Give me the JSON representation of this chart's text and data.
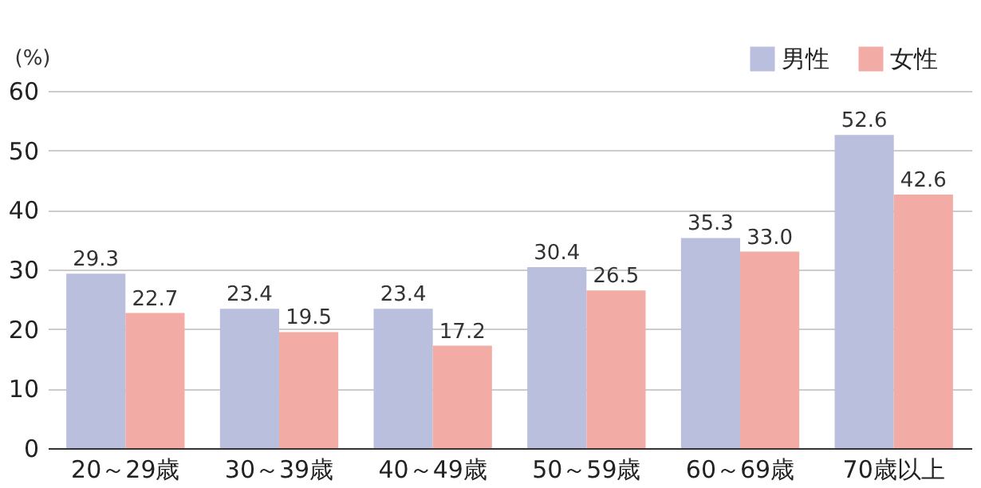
{
  "chart_data": {
    "type": "bar",
    "ylabel": "(%)",
    "categories": [
      "20～29歳",
      "30～39歳",
      "40～49歳",
      "50～59歳",
      "60～69歳",
      "70歳以上"
    ],
    "series": [
      {
        "name": "男性",
        "color": "#b9bfdd",
        "values": [
          29.3,
          23.4,
          23.4,
          30.4,
          35.3,
          52.6
        ],
        "value_labels": [
          "29.3",
          "23.4",
          "23.4",
          "30.4",
          "35.3",
          "52.6"
        ]
      },
      {
        "name": "女性",
        "color": "#f3aca5",
        "values": [
          22.7,
          19.5,
          17.2,
          26.5,
          33.0,
          42.6
        ],
        "value_labels": [
          "22.7",
          "19.5",
          "17.2",
          "26.5",
          "33.0",
          "42.6"
        ]
      }
    ],
    "ylim": [
      0,
      60
    ],
    "yticks": [
      0,
      10,
      20,
      30,
      40,
      50,
      60
    ],
    "grid": "y",
    "legend": "top right"
  }
}
